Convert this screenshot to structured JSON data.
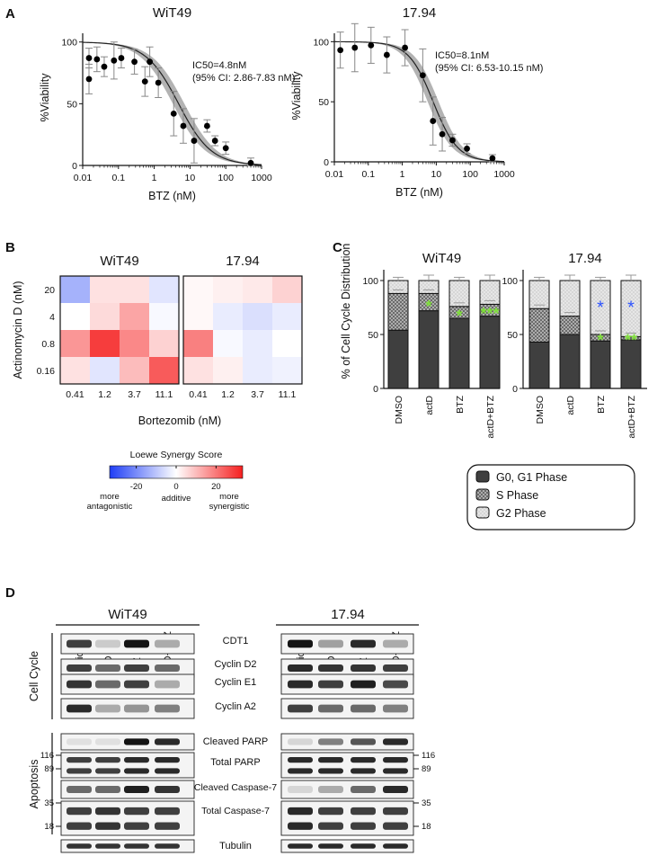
{
  "panels": {
    "A": "A",
    "B": "B",
    "C": "C",
    "D": "D"
  },
  "panel_a": {
    "charts": [
      {
        "title": "WiT49",
        "annotation": [
          "IC50=4.8nM",
          "(95% CI: 2.86-7.83 nM)"
        ]
      },
      {
        "title": "17.94",
        "annotation": [
          "IC50=8.1nM",
          "(95% CI: 6.53-10.15 nM)"
        ]
      }
    ]
  },
  "chart_data": [
    {
      "type": "scatter",
      "title": "WiT49",
      "xlabel": "BTZ (nM)",
      "ylabel": "%Viability",
      "xscale": "log",
      "xlim": [
        0.01,
        1000
      ],
      "ylim": [
        0,
        110
      ],
      "xticks": [
        "0.01",
        "0.1",
        "1",
        "10",
        "100",
        "1000"
      ],
      "yticks": [
        "0",
        "50",
        "100"
      ],
      "points": [
        {
          "x": 0.015,
          "y": 87,
          "err": 8
        },
        {
          "x": 0.015,
          "y": 70,
          "err": 12
        },
        {
          "x": 0.025,
          "y": 86,
          "err": 10
        },
        {
          "x": 0.04,
          "y": 80,
          "err": 8
        },
        {
          "x": 0.075,
          "y": 85,
          "err": 15
        },
        {
          "x": 0.12,
          "y": 87,
          "err": 8
        },
        {
          "x": 0.28,
          "y": 84,
          "err": 10
        },
        {
          "x": 0.55,
          "y": 68,
          "err": 12
        },
        {
          "x": 0.75,
          "y": 84,
          "err": 12
        },
        {
          "x": 1.3,
          "y": 67,
          "err": 12
        },
        {
          "x": 3.5,
          "y": 42,
          "err": 18
        },
        {
          "x": 6.5,
          "y": 32,
          "err": 14
        },
        {
          "x": 13,
          "y": 20,
          "err": 18
        },
        {
          "x": 30,
          "y": 32,
          "err": 5
        },
        {
          "x": 50,
          "y": 20,
          "err": 4
        },
        {
          "x": 100,
          "y": 14,
          "err": 5
        },
        {
          "x": 500,
          "y": 2,
          "err": 4
        }
      ],
      "fit": {
        "top": 100,
        "bottom": 0,
        "ic50": 4.8,
        "hill": 0.95
      }
    },
    {
      "type": "scatter",
      "title": "17.94",
      "xlabel": "BTZ (nM)",
      "ylabel": "%Viability",
      "xscale": "log",
      "xlim": [
        0.01,
        1000
      ],
      "ylim": [
        0,
        110
      ],
      "xticks": [
        "0.01",
        "0.1",
        "1",
        "10",
        "100",
        "1000"
      ],
      "yticks": [
        "0",
        "50",
        "100"
      ],
      "points": [
        {
          "x": 0.015,
          "y": 93,
          "err": 15
        },
        {
          "x": 0.04,
          "y": 95,
          "err": 20
        },
        {
          "x": 0.12,
          "y": 97,
          "err": 15
        },
        {
          "x": 0.35,
          "y": 89,
          "err": 15
        },
        {
          "x": 1.2,
          "y": 95,
          "err": 15
        },
        {
          "x": 4,
          "y": 72,
          "err": 22
        },
        {
          "x": 8,
          "y": 34,
          "err": 20
        },
        {
          "x": 15,
          "y": 23,
          "err": 14
        },
        {
          "x": 30,
          "y": 18,
          "err": 5
        },
        {
          "x": 80,
          "y": 11,
          "err": 4
        },
        {
          "x": 450,
          "y": 3,
          "err": 3
        }
      ],
      "fit": {
        "top": 100,
        "bottom": 0,
        "ic50": 8.1,
        "hill": 1.2
      }
    },
    {
      "type": "heatmap",
      "title": "WiT49",
      "xlabel": "Bortezomib (nM)",
      "ylabel": "Actinomycin D (nM)",
      "x": [
        "0.41",
        "1.2",
        "3.7",
        "11.1"
      ],
      "y": [
        "20",
        "4",
        "0.8",
        "0.16"
      ],
      "values": [
        [
          -12,
          4,
          4,
          -4
        ],
        [
          0,
          5,
          12,
          -1
        ],
        [
          14,
          26,
          16,
          6
        ],
        [
          4,
          -4,
          9,
          22
        ]
      ]
    },
    {
      "type": "heatmap",
      "title": "17.94",
      "xlabel": "Bortezomib (nM)",
      "ylabel": "Actinomycin D (nM)",
      "x": [
        "0.41",
        "1.2",
        "3.7",
        "11.1"
      ],
      "y": [
        "20",
        "4",
        "0.8",
        "0.16"
      ],
      "values": [
        [
          1,
          2,
          3,
          6
        ],
        [
          1,
          -3,
          -5,
          -3
        ],
        [
          17,
          -1,
          -3,
          0
        ],
        [
          4,
          2,
          -3,
          -2
        ]
      ]
    },
    {
      "type": "bar",
      "stacked": true,
      "title": "WiT49",
      "ylabel": "% of Cell Cycle Distribution",
      "ylim": [
        0,
        110
      ],
      "yticks": [
        "0",
        "50",
        "100"
      ],
      "categories": [
        "DMSO",
        "actD",
        "BTZ",
        "actD+BTZ"
      ],
      "series": [
        {
          "name": "G0, G1 Phase",
          "values": [
            54,
            72,
            65,
            67
          ]
        },
        {
          "name": "S Phase",
          "values": [
            34,
            16,
            11,
            11
          ]
        },
        {
          "name": "G2 Phase",
          "values": [
            12,
            12,
            24,
            22
          ]
        }
      ],
      "sig_labels": [
        "",
        "*",
        "*",
        "***"
      ]
    },
    {
      "type": "bar",
      "stacked": true,
      "title": "17.94",
      "ylim": [
        0,
        110
      ],
      "yticks": [
        "0",
        "50",
        "100"
      ],
      "categories": [
        "DMSO",
        "actD",
        "BTZ",
        "actD+BTZ"
      ],
      "series": [
        {
          "name": "G0, G1 Phase",
          "values": [
            43,
            50,
            44,
            45
          ]
        },
        {
          "name": "S Phase",
          "values": [
            31,
            17,
            6,
            3
          ]
        },
        {
          "name": "G2 Phase",
          "values": [
            26,
            33,
            50,
            52
          ]
        }
      ],
      "sig_labels": [
        "",
        "",
        "*",
        "**"
      ]
    }
  ],
  "panel_b": {
    "colorbar": {
      "title": "Loewe Synergy Score",
      "ticks": [
        "-20",
        "0",
        "20"
      ],
      "captions": [
        "more\nantagonistic",
        "additive",
        "more\nsynergistic"
      ],
      "low_color": "#1f3ef5",
      "mid_color": "#ffffff",
      "high_color": "#f51f1f"
    }
  },
  "panel_c": {
    "legend": [
      "G0, G1 Phase",
      "S Phase",
      "G2 Phase"
    ],
    "colors": {
      "g1": "#3f3f3f",
      "s": "#777777",
      "g2": "#e6e6e6",
      "green": "#7fe03a",
      "blue": "#2f55ff"
    }
  },
  "panel_d": {
    "cell_lines": [
      "WiT49",
      "17.94"
    ],
    "lanes": [
      "Vehicle",
      "actD",
      "BTZ",
      "actD+BTZ"
    ],
    "groups": [
      "Cell Cycle",
      "Apoptosis"
    ],
    "blots": [
      "CDT1",
      "Cyclin D2",
      "Cyclin E1",
      "Cyclin A2",
      "Cleaved PARP",
      "Total PARP",
      "Cleaved Caspase-7",
      "Total Caspase-7",
      "Tubulin"
    ],
    "markers": {
      "parp": [
        "116",
        "89"
      ],
      "casp": [
        "35",
        "18"
      ]
    }
  }
}
